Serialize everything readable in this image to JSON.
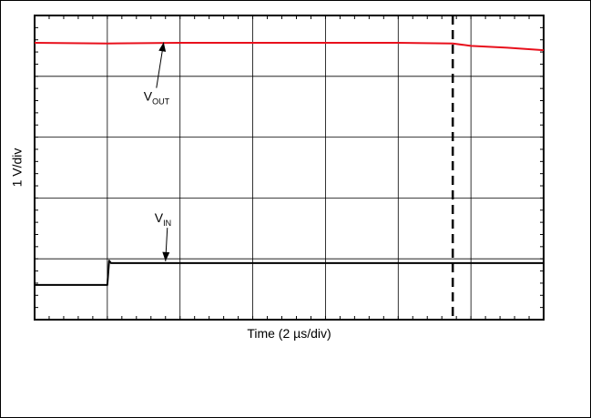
{
  "chart_data": {
    "type": "line",
    "xlabel": "Time (2 µs/div)",
    "ylabel": "1 V/div",
    "xlim": [
      0,
      14
    ],
    "ylim": [
      0,
      5
    ],
    "x_unit": "µs",
    "y_unit": "div",
    "grid": true,
    "legend": "none",
    "series": [
      {
        "label_main": "V",
        "label_sub": "OUT",
        "color": "#e8101c",
        "x": [
          0,
          2,
          4,
          6,
          8,
          10,
          11.5,
          12,
          13,
          14
        ],
        "y": [
          4.55,
          4.54,
          4.55,
          4.55,
          4.55,
          4.55,
          4.54,
          4.5,
          4.47,
          4.43
        ]
      },
      {
        "label_main": "V",
        "label_sub": "IN",
        "color": "#000000",
        "x": [
          0,
          1.99,
          2.0,
          2.05,
          2.1,
          14
        ],
        "y": [
          0.57,
          0.57,
          0.57,
          0.97,
          0.93,
          0.93
        ]
      }
    ],
    "markers": [
      {
        "type": "vline",
        "x": 11.5,
        "style": "dashed",
        "color": "#000000"
      }
    ],
    "annotations": [
      {
        "series": "VOUT",
        "text_x": 3.0,
        "text_y": 3.6,
        "arrow_x": 3.55,
        "arrow_y": 4.56
      },
      {
        "series": "VIN",
        "text_x": 3.3,
        "text_y": 1.6,
        "arrow_x": 3.6,
        "arrow_y": 0.96
      }
    ]
  }
}
